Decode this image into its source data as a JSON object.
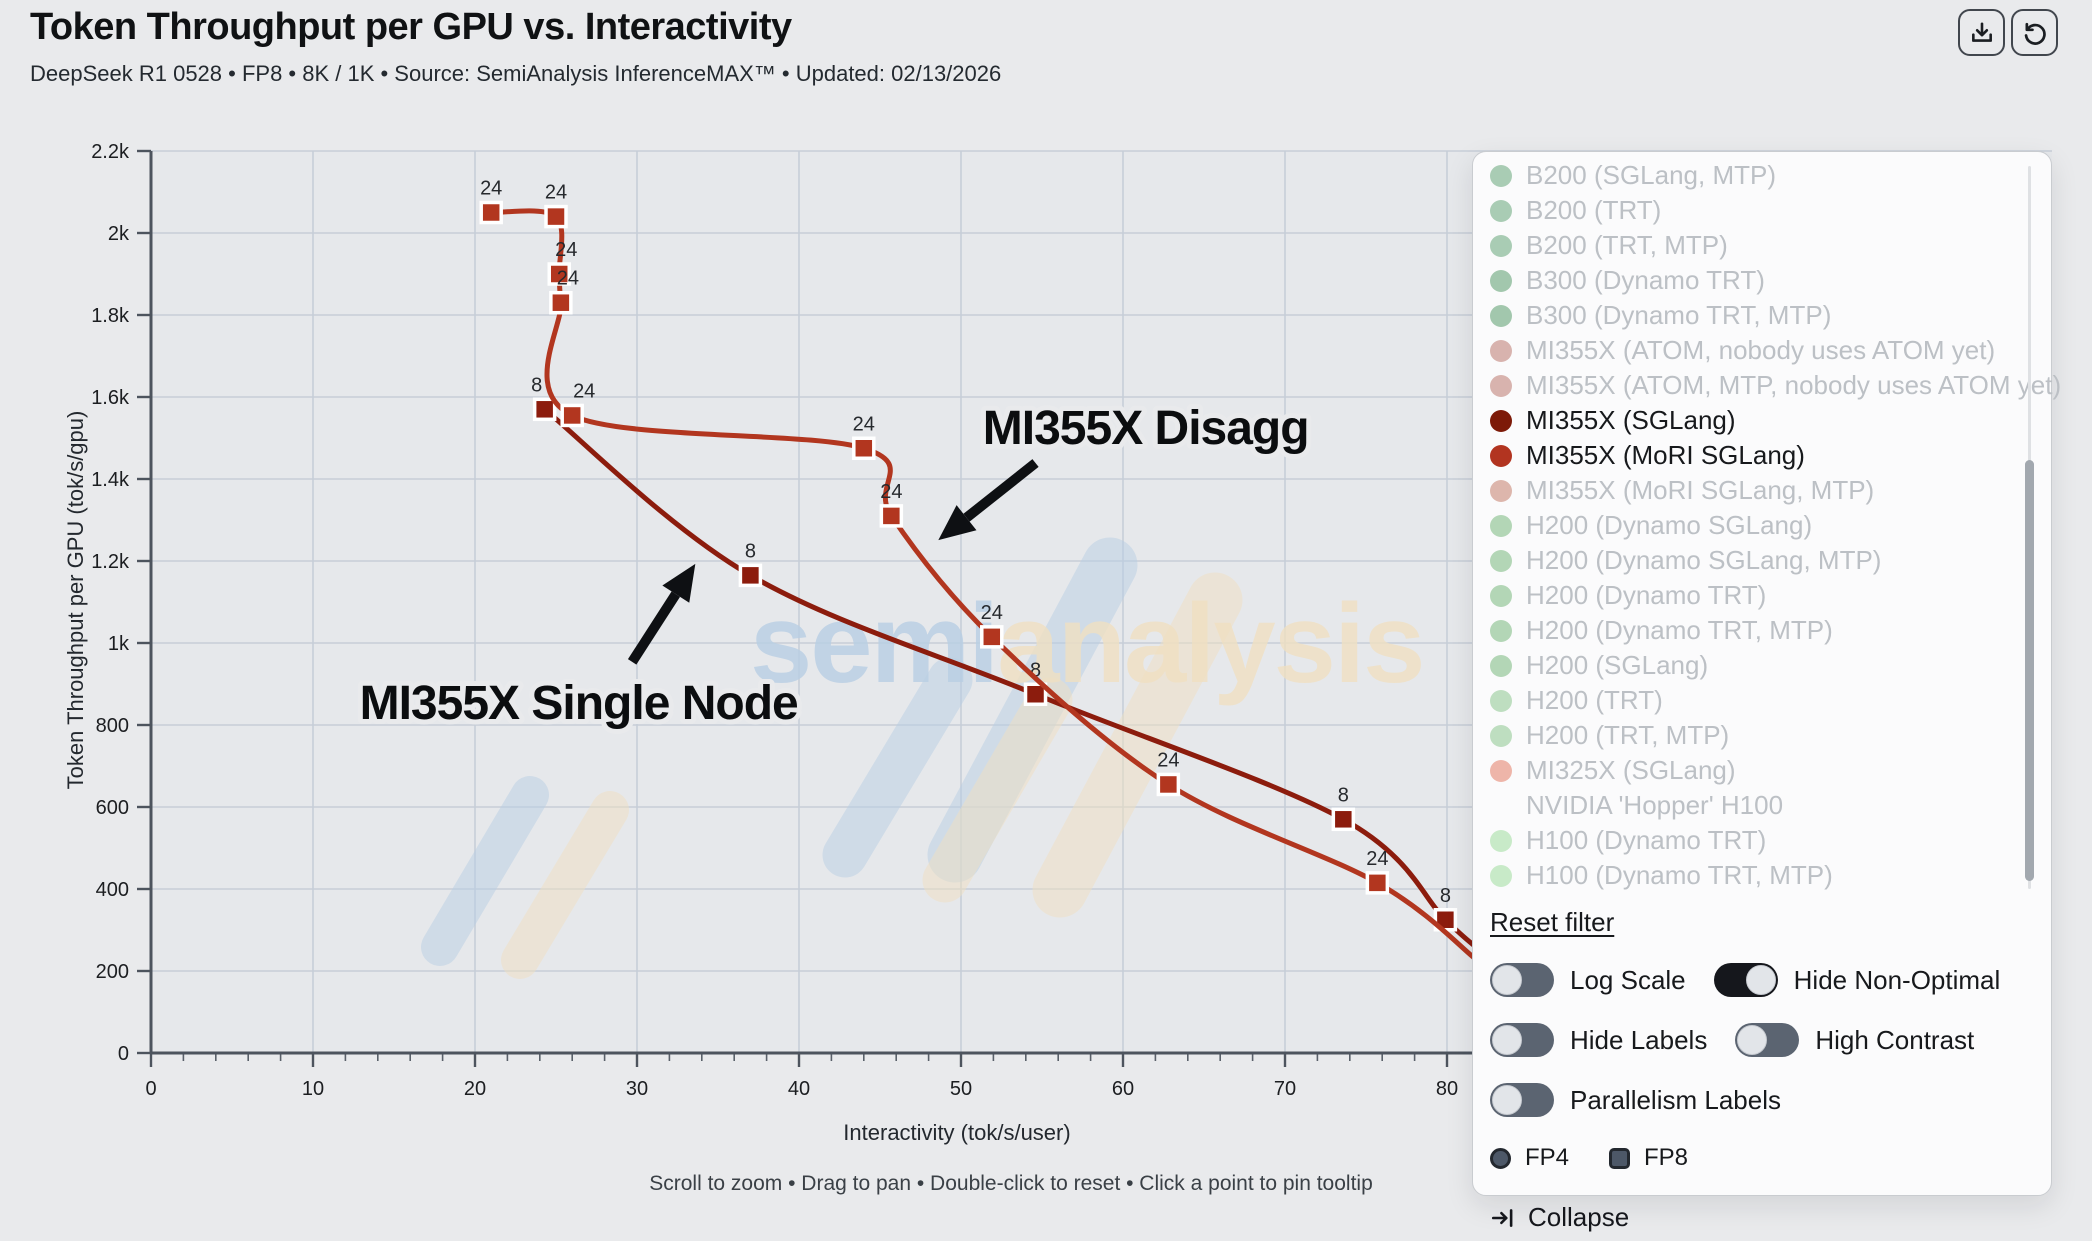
{
  "header": {
    "title": "Token Throughput per GPU vs. Interactivity",
    "subtitle": "DeepSeek R1 0528 • FP8 • 8K / 1K • Source: SemiAnalysis InferenceMAX™ • Updated: 02/13/2026"
  },
  "chart_data": {
    "type": "line",
    "title": "Token Throughput per GPU vs. Interactivity",
    "xlabel": "Interactivity (tok/s/user)",
    "ylabel": "Token Throughput per GPU (tok/s/gpu)",
    "xlim": [
      0,
      85
    ],
    "ylim": [
      0,
      2200
    ],
    "grid": true,
    "x_ticks": [
      {
        "v": 0,
        "label": "0"
      },
      {
        "v": 10,
        "label": "10"
      },
      {
        "v": 20,
        "label": "20"
      },
      {
        "v": 30,
        "label": "30"
      },
      {
        "v": 40,
        "label": "40"
      },
      {
        "v": 50,
        "label": "50"
      },
      {
        "v": 60,
        "label": "60"
      },
      {
        "v": 70,
        "label": "70"
      },
      {
        "v": 80,
        "label": "80"
      }
    ],
    "x_minor_step": 2,
    "y_ticks": [
      {
        "v": 0,
        "label": "0"
      },
      {
        "v": 200,
        "label": "200"
      },
      {
        "v": 400,
        "label": "400"
      },
      {
        "v": 600,
        "label": "600"
      },
      {
        "v": 800,
        "label": "800"
      },
      {
        "v": 1000,
        "label": "1k"
      },
      {
        "v": 1200,
        "label": "1.2k"
      },
      {
        "v": 1400,
        "label": "1.4k"
      },
      {
        "v": 1600,
        "label": "1.6k"
      },
      {
        "v": 1800,
        "label": "1.8k"
      },
      {
        "v": 2000,
        "label": "2k"
      },
      {
        "v": 2200,
        "label": "2.2k"
      }
    ],
    "series": [
      {
        "name": "MI355X (SGLang)",
        "annotation": "MI355X Single Node",
        "color": "#8c1c0d",
        "point_label": "8",
        "points": [
          [
            24.3,
            1570
          ],
          [
            37,
            1165
          ],
          [
            54.6,
            875
          ],
          [
            73.6,
            570
          ],
          [
            79.9,
            325
          ]
        ],
        "label_dx": [
          -8,
          0,
          0,
          0,
          0
        ],
        "line_end": [
          81.8,
          258
        ]
      },
      {
        "name": "MI355X (MoRI SGLang)",
        "annotation": "MI355X Disagg",
        "color": "#b2361f",
        "point_label": "24",
        "points": [
          [
            21,
            2050
          ],
          [
            25,
            2040
          ],
          [
            25.2,
            1900
          ],
          [
            25.3,
            1830
          ],
          [
            26,
            1555
          ],
          [
            44,
            1475
          ],
          [
            45.7,
            1310
          ],
          [
            51.9,
            1015
          ],
          [
            62.8,
            655
          ],
          [
            75.7,
            415
          ]
        ],
        "label_dx": [
          0,
          0,
          7,
          7,
          12,
          0,
          0,
          0,
          0,
          0
        ],
        "line_end": [
          81.8,
          228
        ]
      }
    ],
    "annotations": [
      {
        "text": "MI355X Single Node",
        "x": 26.4,
        "y": 856,
        "arrow": {
          "x1": 29.7,
          "y1": 954,
          "x2": 33.6,
          "y2": 1193
        }
      },
      {
        "text": "MI355X Disagg",
        "x": 61.4,
        "y": 1527,
        "arrow": {
          "x1": 54.6,
          "y1": 1439,
          "x2": 48.6,
          "y2": 1251
        }
      }
    ],
    "hint": "Scroll to zoom • Drag to pan • Double-click to reset • Click a point to pin tooltip"
  },
  "watermark": {
    "part1": "semi",
    "part2": "analysis",
    "blue": "#b9cfe4",
    "cream": "#f0e0c2"
  },
  "legend": {
    "items": [
      {
        "label": "B200 (SGLang, MTP)",
        "color": "#a9ccb4",
        "active": false
      },
      {
        "label": "B200 (TRT)",
        "color": "#a9ccb4",
        "active": false
      },
      {
        "label": "B200 (TRT, MTP)",
        "color": "#a9ccb4",
        "active": false
      },
      {
        "label": "B300 (Dynamo TRT)",
        "color": "#a2c7ad",
        "active": false
      },
      {
        "label": "B300 (Dynamo TRT, MTP)",
        "color": "#a2c7ad",
        "active": false
      },
      {
        "label": "MI355X (ATOM, nobody uses ATOM yet)",
        "color": "#d8b3ae",
        "active": false
      },
      {
        "label": "MI355X (ATOM, MTP, nobody uses ATOM yet)",
        "color": "#d8b3ae",
        "active": false
      },
      {
        "label": "MI355X (SGLang)",
        "color": "#7d1a08",
        "active": true
      },
      {
        "label": "MI355X (MoRI SGLang)",
        "color": "#b23420",
        "active": true
      },
      {
        "label": "MI355X (MoRI SGLang, MTP)",
        "color": "#ddb6ac",
        "active": false
      },
      {
        "label": "H200 (Dynamo SGLang)",
        "color": "#b3d6b6",
        "active": false
      },
      {
        "label": "H200 (Dynamo SGLang, MTP)",
        "color": "#b3d6b6",
        "active": false
      },
      {
        "label": "H200 (Dynamo TRT)",
        "color": "#b3d6b6",
        "active": false
      },
      {
        "label": "H200 (Dynamo TRT, MTP)",
        "color": "#b3d6b6",
        "active": false
      },
      {
        "label": "H200 (SGLang)",
        "color": "#b3d6b6",
        "active": false
      },
      {
        "label": "H200 (TRT)",
        "color": "#bedec0",
        "active": false
      },
      {
        "label": "H200 (TRT, MTP)",
        "color": "#bedec0",
        "active": false
      },
      {
        "label": "MI325X (SGLang)",
        "color": "#eeb5a9",
        "active": false
      },
      {
        "label": "NVIDIA 'Hopper' H100",
        "color": null,
        "active": false
      },
      {
        "label": "H100 (Dynamo TRT)",
        "color": "#c8eac8",
        "active": false
      },
      {
        "label": "H100 (Dynamo TRT, MTP)",
        "color": "#c8eac8",
        "active": false
      }
    ],
    "reset_label": "Reset filter",
    "toggle_rows": [
      [
        {
          "label": "Log Scale",
          "on": false
        },
        {
          "label": "Hide Non-Optimal",
          "on": true
        }
      ],
      [
        {
          "label": "Hide Labels",
          "on": false
        },
        {
          "label": "High Contrast",
          "on": false
        }
      ],
      [
        {
          "label": "Parallelism Labels",
          "on": false
        }
      ]
    ],
    "fp_options": [
      {
        "label": "FP4",
        "shape": "circle"
      },
      {
        "label": "FP8",
        "shape": "square"
      }
    ],
    "collapse_label": "Collapse"
  }
}
